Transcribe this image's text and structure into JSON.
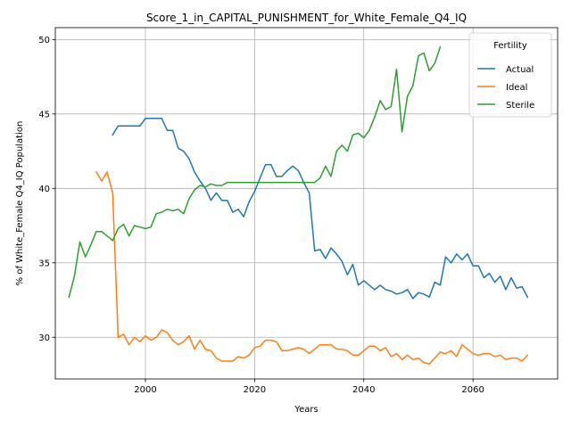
{
  "chart_data": {
    "type": "line",
    "title": "Score_1_in_CAPITAL_PUNISHMENT_for_White_Female_Q4_IQ",
    "xlabel": "Years",
    "ylabel": "% of White_Female Q4_IQ Population",
    "xlim": [
      1983.5,
      2075.5
    ],
    "ylim": [
      27.2,
      50.8
    ],
    "xticks": [
      2000,
      2020,
      2040,
      2060
    ],
    "yticks": [
      30,
      35,
      40,
      45,
      50
    ],
    "grid": true,
    "legend": {
      "title": "Fertility",
      "position": "upper-right"
    },
    "series": [
      {
        "name": "Actual",
        "color": "#1f77b4",
        "x": [
          1994,
          1995,
          1996,
          1997,
          1998,
          1999,
          2000,
          2001,
          2002,
          2003,
          2004,
          2005,
          2006,
          2007,
          2008,
          2009,
          2010,
          2011,
          2012,
          2013,
          2014,
          2015,
          2016,
          2017,
          2018,
          2019,
          2020,
          2021,
          2022,
          2023,
          2024,
          2025,
          2026,
          2027,
          2028,
          2029,
          2030,
          2031,
          2032,
          2033,
          2034,
          2035,
          2036,
          2037,
          2038,
          2039,
          2040,
          2041,
          2042,
          2043,
          2044,
          2045,
          2046,
          2047,
          2048,
          2049,
          2050,
          2051,
          2052,
          2053,
          2054,
          2055,
          2056,
          2057,
          2058,
          2059,
          2060,
          2061,
          2062,
          2063,
          2064,
          2065,
          2066,
          2067,
          2068,
          2069,
          2070
        ],
        "y": [
          43.6,
          44.2,
          44.2,
          44.2,
          44.2,
          44.2,
          44.7,
          44.7,
          44.7,
          44.7,
          43.9,
          43.9,
          42.7,
          42.5,
          42.0,
          41.1,
          40.5,
          40.0,
          39.2,
          39.7,
          39.2,
          39.2,
          38.4,
          38.6,
          38.1,
          39.1,
          39.8,
          40.7,
          41.6,
          41.6,
          40.8,
          40.8,
          41.2,
          41.5,
          41.2,
          40.4,
          39.7,
          35.8,
          35.9,
          35.3,
          36.0,
          35.6,
          35.1,
          34.2,
          34.9,
          33.5,
          33.8,
          33.5,
          33.2,
          33.5,
          33.2,
          33.1,
          32.9,
          33.0,
          33.2,
          32.6,
          33.0,
          32.9,
          32.7,
          33.7,
          33.5,
          35.4,
          35.0,
          35.6,
          35.2,
          35.6,
          34.8,
          34.8,
          34.0,
          34.3,
          33.7,
          34.1,
          33.2,
          34.0,
          33.3,
          33.4,
          32.7
        ]
      },
      {
        "name": "Ideal",
        "color": "#ff7f0e",
        "x": [
          1991,
          1992,
          1993,
          1994,
          1995,
          1996,
          1997,
          1998,
          1999,
          2000,
          2001,
          2002,
          2003,
          2004,
          2005,
          2006,
          2007,
          2008,
          2009,
          2010,
          2011,
          2012,
          2013,
          2014,
          2015,
          2016,
          2017,
          2018,
          2019,
          2020,
          2021,
          2022,
          2023,
          2024,
          2025,
          2026,
          2027,
          2028,
          2029,
          2030,
          2031,
          2032,
          2033,
          2034,
          2035,
          2036,
          2037,
          2038,
          2039,
          2040,
          2041,
          2042,
          2043,
          2044,
          2045,
          2046,
          2047,
          2048,
          2049,
          2050,
          2051,
          2052,
          2053,
          2054,
          2055,
          2056,
          2057,
          2058,
          2059,
          2060,
          2061,
          2062,
          2063,
          2064,
          2065,
          2066,
          2067,
          2068,
          2069,
          2070
        ],
        "y": [
          41.1,
          40.5,
          41.1,
          39.7,
          30.0,
          30.2,
          29.5,
          30.0,
          29.7,
          30.1,
          29.8,
          30.0,
          30.5,
          30.3,
          29.8,
          29.5,
          29.7,
          30.1,
          29.2,
          29.8,
          29.2,
          29.1,
          28.6,
          28.4,
          28.4,
          28.4,
          28.7,
          28.6,
          28.8,
          29.3,
          29.4,
          29.8,
          29.8,
          29.7,
          29.1,
          29.1,
          29.2,
          29.3,
          29.2,
          28.9,
          29.2,
          29.5,
          29.5,
          29.5,
          29.2,
          29.2,
          29.1,
          28.8,
          28.8,
          29.1,
          29.4,
          29.4,
          29.1,
          29.3,
          28.7,
          28.9,
          28.5,
          28.8,
          28.5,
          28.6,
          28.3,
          28.2,
          28.6,
          29.0,
          28.9,
          29.1,
          28.7,
          29.5,
          29.2,
          28.9,
          28.8,
          28.9,
          28.9,
          28.7,
          28.8,
          28.5,
          28.6,
          28.6,
          28.4,
          28.8
        ]
      },
      {
        "name": "Sterile",
        "color": "#2ca02c",
        "x": [
          1986,
          1987,
          1988,
          1989,
          1990,
          1991,
          1992,
          1993,
          1994,
          1995,
          1996,
          1997,
          1998,
          1999,
          2000,
          2001,
          2002,
          2003,
          2004,
          2005,
          2006,
          2007,
          2008,
          2009,
          2010,
          2011,
          2012,
          2013,
          2014,
          2015,
          2016,
          2017,
          2018,
          2019,
          2020,
          2021,
          2022,
          2023,
          2024,
          2025,
          2026,
          2027,
          2028,
          2029,
          2030,
          2031,
          2032,
          2033,
          2034,
          2035,
          2036,
          2037,
          2038,
          2039,
          2040,
          2041,
          2042,
          2043,
          2044,
          2045,
          2046,
          2047,
          2048,
          2049,
          2050,
          2051,
          2052,
          2053,
          2054
        ],
        "y": [
          32.7,
          34.1,
          36.4,
          35.4,
          36.2,
          37.1,
          37.1,
          36.8,
          36.5,
          37.3,
          37.6,
          36.8,
          37.5,
          37.4,
          37.3,
          37.4,
          38.3,
          38.4,
          38.6,
          38.5,
          38.6,
          38.3,
          39.3,
          39.9,
          40.2,
          40.1,
          40.3,
          40.2,
          40.2,
          40.4,
          40.4,
          40.4,
          40.4,
          40.4,
          40.4,
          40.4,
          40.4,
          40.4,
          40.4,
          40.4,
          40.4,
          40.4,
          40.4,
          40.4,
          40.4,
          40.4,
          40.7,
          41.5,
          40.8,
          42.5,
          42.9,
          42.5,
          43.6,
          43.7,
          43.4,
          43.9,
          44.8,
          45.9,
          45.3,
          45.5,
          48.0,
          43.8,
          46.2,
          46.9,
          48.9,
          49.1,
          47.9,
          48.4,
          49.5
        ]
      }
    ]
  }
}
